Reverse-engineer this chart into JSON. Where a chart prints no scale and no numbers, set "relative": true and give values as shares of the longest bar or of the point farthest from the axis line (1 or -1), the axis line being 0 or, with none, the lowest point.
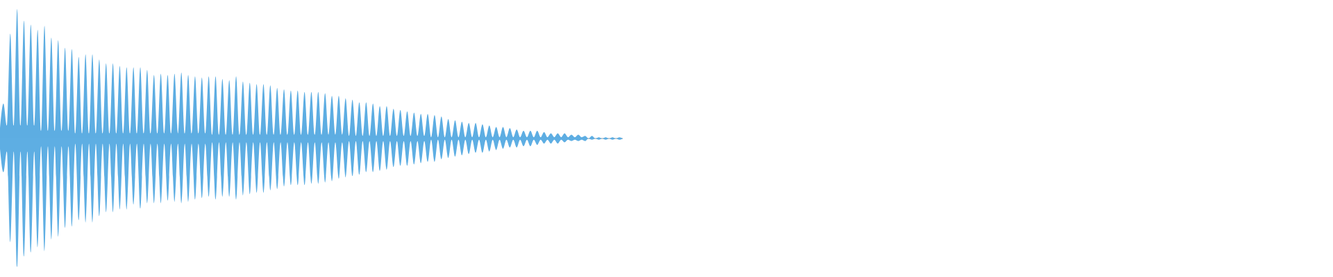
{
  "chart_data": {
    "type": "area",
    "relative": true,
    "categories": [
      null,
      null,
      null,
      null,
      null,
      null,
      null,
      null,
      null,
      null,
      null,
      null,
      null,
      null,
      null,
      null,
      null,
      null,
      null,
      null,
      null,
      null,
      null,
      null,
      null,
      null,
      null,
      null,
      null,
      null,
      null,
      null,
      null,
      null,
      null,
      null,
      null,
      null,
      null,
      null,
      null,
      null,
      null,
      null,
      null,
      null,
      null,
      null,
      null,
      null,
      null,
      null,
      null,
      null,
      null,
      null,
      null,
      null,
      null,
      null,
      null,
      null,
      null,
      null,
      null,
      null,
      null,
      null,
      null,
      null,
      null,
      null,
      null,
      null,
      null,
      null,
      null,
      null,
      null,
      null,
      null,
      null,
      null,
      null,
      null,
      null,
      null,
      null,
      null,
      null,
      null,
      null,
      null,
      null,
      null,
      null,
      null,
      null,
      null,
      null,
      null,
      null,
      null,
      null,
      null,
      null,
      null,
      null,
      null,
      null,
      null,
      null,
      null,
      null,
      null,
      null,
      null,
      null,
      null,
      null,
      null,
      null,
      null,
      null,
      null,
      null,
      null,
      null,
      null,
      null,
      null,
      null,
      null,
      null,
      null,
      null,
      null,
      null,
      null,
      null,
      null,
      null,
      null,
      null,
      null,
      null,
      null,
      null,
      null,
      null,
      null,
      null,
      null,
      null,
      null,
      null,
      null,
      null,
      null,
      null,
      null,
      null,
      null,
      null,
      null,
      null,
      null,
      null,
      null,
      null,
      null,
      null,
      null,
      null,
      null,
      null,
      null,
      null,
      null,
      null,
      null,
      null,
      null
    ],
    "series": [
      {
        "color": "#5dade2",
        "values": [
          0.08,
          0.27,
          0.1,
          0.81,
          0.1,
          1,
          0.1,
          0.91,
          0.1,
          0.88,
          0.1,
          0.84,
          0.06,
          0.87,
          0.06,
          0.78,
          0.06,
          0.76,
          0.06,
          0.7,
          0.06,
          0.69,
          0.04,
          0.63,
          0.04,
          0.65,
          0.04,
          0.65,
          0.04,
          0.61,
          0.04,
          0.58,
          0.04,
          0.58,
          0.04,
          0.56,
          0.04,
          0.55,
          0.04,
          0.55,
          0.04,
          0.55,
          0.04,
          0.53,
          0.04,
          0.49,
          0.04,
          0.5,
          0.04,
          0.49,
          0.04,
          0.5,
          0.04,
          0.51,
          0.04,
          0.49,
          0.04,
          0.48,
          0.04,
          0.47,
          0.04,
          0.48,
          0.03,
          0.48,
          0.03,
          0.46,
          0.03,
          0.45,
          0.03,
          0.48,
          0.03,
          0.44,
          0.03,
          0.43,
          0.03,
          0.42,
          0.03,
          0.42,
          0.03,
          0.41,
          0.03,
          0.39,
          0.03,
          0.38,
          0.03,
          0.37,
          0.03,
          0.37,
          0.03,
          0.36,
          0.03,
          0.36,
          0.03,
          0.36,
          0.03,
          0.35,
          0.03,
          0.33,
          0.03,
          0.33,
          0.03,
          0.31,
          0.02,
          0.3,
          0.02,
          0.28,
          0.02,
          0.28,
          0.02,
          0.27,
          0.02,
          0.25,
          0.02,
          0.25,
          0.02,
          0.23,
          0.02,
          0.22,
          0.02,
          0.21,
          0.02,
          0.2,
          0.02,
          0.19,
          0.02,
          0.19,
          0.01,
          0.18,
          0.01,
          0.17,
          0.01,
          0.15,
          0.01,
          0.14,
          0.01,
          0.13,
          0.01,
          0.12,
          0.01,
          0.12,
          0.01,
          0.11,
          0.01,
          0.1,
          0.01,
          0.09,
          0.01,
          0.09,
          0.01,
          0.08,
          0.01,
          0.07,
          0.01,
          0.06,
          0.01,
          0.06,
          0.01,
          0.06,
          0.01,
          0.05,
          0.01,
          0.04,
          0.01,
          0.04,
          0.01,
          0.04,
          0.01,
          0.03,
          0.01,
          0.03,
          0.01,
          0.02,
          0,
          0.02,
          0,
          0.01,
          0,
          0.01,
          0,
          0.01,
          0,
          0.01,
          0
        ]
      },
      {
        "color": "#5eaee3",
        "values": [
          -0.08,
          -0.26,
          -0.1,
          -0.8,
          -0.1,
          -0.99,
          -0.1,
          -0.91,
          -0.1,
          -0.88,
          -0.1,
          -0.84,
          -0.06,
          -0.87,
          -0.06,
          -0.78,
          -0.06,
          -0.76,
          -0.06,
          -0.69,
          -0.06,
          -0.68,
          -0.04,
          -0.63,
          -0.04,
          -0.65,
          -0.04,
          -0.65,
          -0.04,
          -0.6,
          -0.04,
          -0.57,
          -0.04,
          -0.57,
          -0.04,
          -0.55,
          -0.04,
          -0.55,
          -0.04,
          -0.51,
          -0.04,
          -0.54,
          -0.04,
          -0.5,
          -0.04,
          -0.5,
          -0.04,
          -0.5,
          -0.04,
          -0.48,
          -0.04,
          -0.49,
          -0.04,
          -0.5,
          -0.04,
          -0.49,
          -0.04,
          -0.47,
          -0.04,
          -0.46,
          -0.04,
          -0.45,
          -0.03,
          -0.47,
          -0.03,
          -0.45,
          -0.03,
          -0.45,
          -0.03,
          -0.47,
          -0.03,
          -0.44,
          -0.03,
          -0.43,
          -0.03,
          -0.42,
          -0.03,
          -0.42,
          -0.03,
          -0.4,
          -0.03,
          -0.39,
          -0.03,
          -0.37,
          -0.03,
          -0.36,
          -0.03,
          -0.36,
          -0.03,
          -0.36,
          -0.03,
          -0.35,
          -0.03,
          -0.35,
          -0.03,
          -0.34,
          -0.03,
          -0.33,
          -0.03,
          -0.31,
          -0.03,
          -0.3,
          -0.02,
          -0.29,
          -0.02,
          -0.28,
          -0.02,
          -0.26,
          -0.02,
          -0.26,
          -0.02,
          -0.25,
          -0.02,
          -0.24,
          -0.02,
          -0.22,
          -0.02,
          -0.21,
          -0.02,
          -0.21,
          -0.02,
          -0.2,
          -0.02,
          -0.19,
          -0.02,
          -0.18,
          -0.01,
          -0.18,
          -0.01,
          -0.16,
          -0.01,
          -0.15,
          -0.01,
          -0.14,
          -0.01,
          -0.13,
          -0.01,
          -0.12,
          -0.01,
          -0.11,
          -0.01,
          -0.11,
          -0.01,
          -0.1,
          -0.01,
          -0.09,
          -0.01,
          -0.08,
          -0.01,
          -0.07,
          -0.01,
          -0.07,
          -0.01,
          -0.06,
          -0.01,
          -0.06,
          -0.01,
          -0.05,
          -0.01,
          -0.04,
          -0.01,
          -0.04,
          -0.01,
          -0.04,
          -0.01,
          -0.03,
          -0.01,
          -0.02,
          -0.01,
          -0.02,
          -0.01,
          -0.02,
          0,
          -0.01,
          0,
          -0.01,
          0,
          -0.01,
          0,
          -0.01,
          0,
          -0.01,
          0
        ]
      }
    ]
  }
}
